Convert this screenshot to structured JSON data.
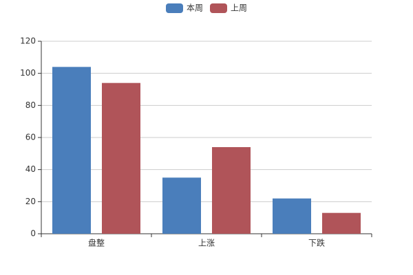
{
  "chart_data": {
    "type": "bar",
    "categories": [
      "盘整",
      "上涨",
      "下跌"
    ],
    "series": [
      {
        "name": "本周",
        "color": "#4a7ebb",
        "values": [
          104,
          35,
          22
        ]
      },
      {
        "name": "上周",
        "color": "#b05459",
        "values": [
          94,
          54,
          13
        ]
      }
    ],
    "ylim": [
      0,
      120
    ],
    "yticks": [
      0,
      20,
      40,
      60,
      80,
      100,
      120
    ],
    "grid": true,
    "legend": "top"
  }
}
